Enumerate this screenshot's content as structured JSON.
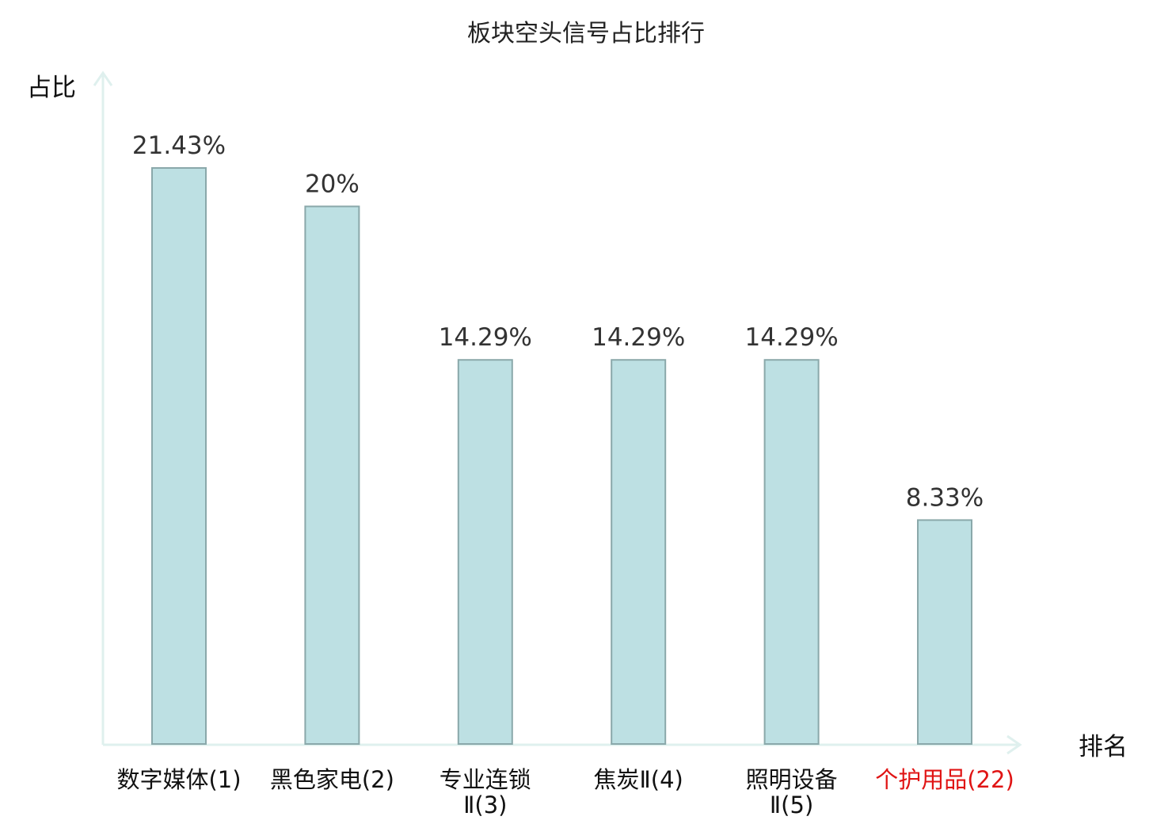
{
  "chart_data": {
    "type": "bar",
    "title": "板块空头信号占比排行",
    "ylabel": "占比",
    "xlabel": "排名",
    "ylim": [
      0,
      25
    ],
    "grid": false,
    "legend": "none",
    "categories": [
      {
        "lines": [
          "数字媒体(1)"
        ],
        "value": 21.43,
        "label": "21.43%",
        "highlight": false
      },
      {
        "lines": [
          "黑色家电(2)"
        ],
        "value": 20,
        "label": "20%",
        "highlight": false
      },
      {
        "lines": [
          "专业连锁",
          "Ⅱ(3)"
        ],
        "value": 14.29,
        "label": "14.29%",
        "highlight": false
      },
      {
        "lines": [
          "焦炭Ⅱ(4)"
        ],
        "value": 14.29,
        "label": "14.29%",
        "highlight": false
      },
      {
        "lines": [
          "照明设备",
          "Ⅱ(5)"
        ],
        "value": 14.29,
        "label": "14.29%",
        "highlight": false
      },
      {
        "lines": [
          "个护用品(22)"
        ],
        "value": 8.33,
        "label": "8.33%",
        "highlight": true
      }
    ],
    "colors": {
      "bar_fill": "#bde0e3",
      "bar_stroke": "#8aa8aa",
      "axis": "#dff0ee",
      "highlight_text": "#e01414"
    }
  }
}
